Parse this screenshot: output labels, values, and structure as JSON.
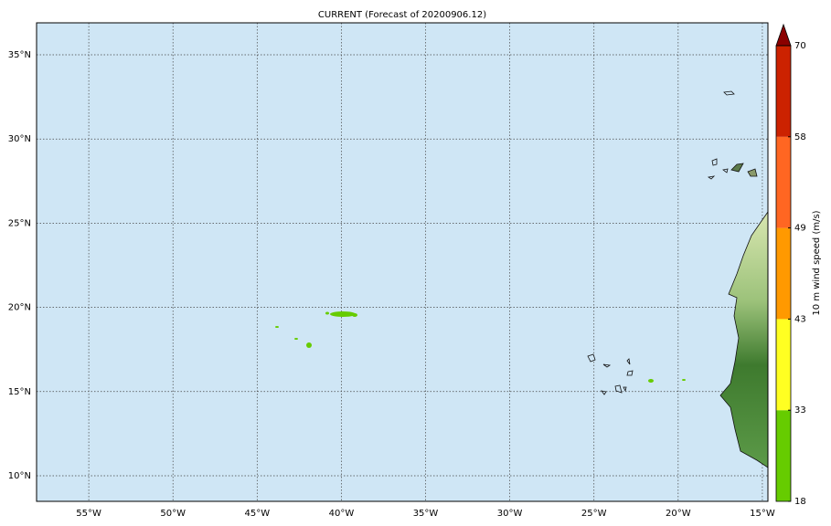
{
  "title": "CURRENT (Forecast of 20200906.12)",
  "map": {
    "lon_range": [
      -58.1,
      -14.67
    ],
    "lat_range": [
      8.48,
      36.9
    ],
    "lon_ticks": [
      {
        "value": -55,
        "label": "55°W"
      },
      {
        "value": -50,
        "label": "50°W"
      },
      {
        "value": -45,
        "label": "45°W"
      },
      {
        "value": -40,
        "label": "40°W"
      },
      {
        "value": -35,
        "label": "35°W"
      },
      {
        "value": -30,
        "label": "30°W"
      },
      {
        "value": -25,
        "label": "25°W"
      },
      {
        "value": -20,
        "label": "20°W"
      },
      {
        "value": -15,
        "label": "15°W"
      }
    ],
    "lat_ticks": [
      {
        "value": 10,
        "label": "10°N"
      },
      {
        "value": 15,
        "label": "15°N"
      },
      {
        "value": 20,
        "label": "20°N"
      },
      {
        "value": 25,
        "label": "25°N"
      },
      {
        "value": 30,
        "label": "30°N"
      },
      {
        "value": 35,
        "label": "35°N"
      }
    ]
  },
  "colorbar": {
    "label": "10 m wind speed (m/s)",
    "ticks": [
      18,
      33,
      43,
      49,
      58,
      70
    ],
    "colors": [
      "#66cc00",
      "#ffff22",
      "#ff9900",
      "#ff6622",
      "#cc2200"
    ],
    "extend_color": "#8b0000"
  }
}
